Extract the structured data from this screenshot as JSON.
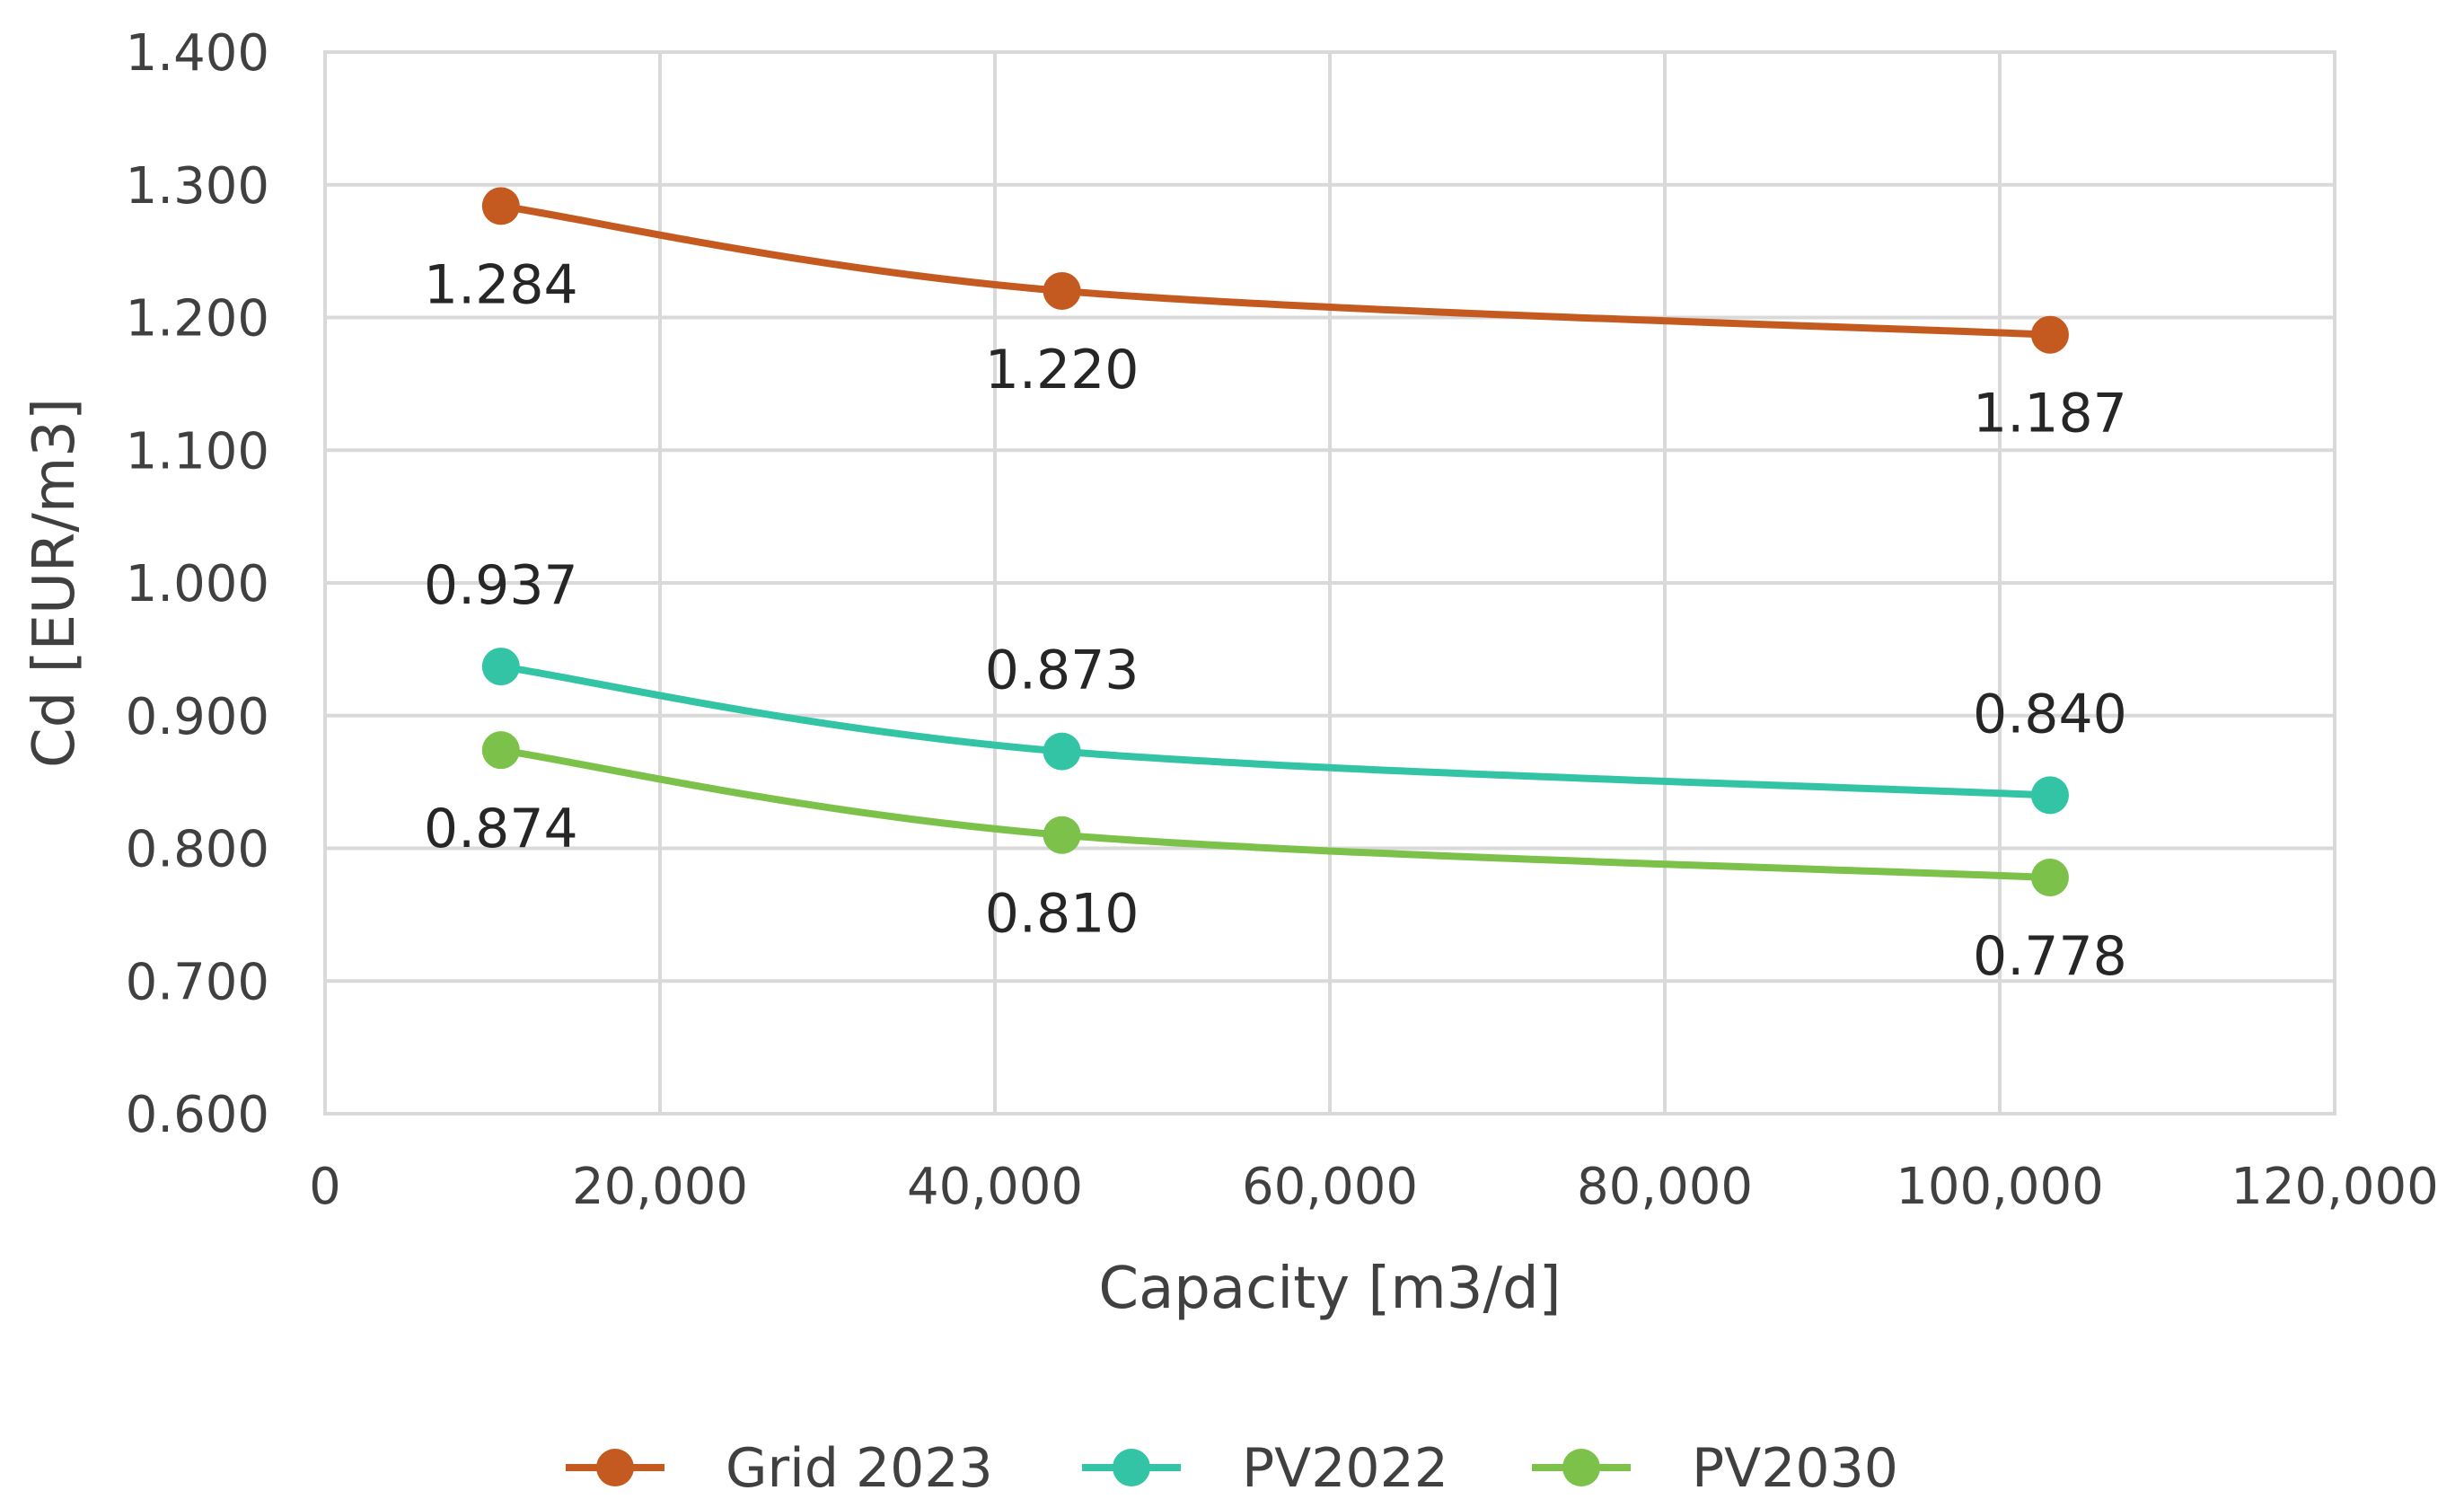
{
  "chart_data": {
    "type": "line",
    "title": "",
    "xlabel": "Capacity [m3/d]",
    "ylabel": "Cd [EUR/m3]",
    "xlim": [
      0,
      120000
    ],
    "ylim": [
      0.6,
      1.4
    ],
    "x_ticks": [
      "0",
      "20,000",
      "40,000",
      "60,000",
      "80,000",
      "100,000",
      "120,000"
    ],
    "y_ticks": [
      "0.600",
      "0.700",
      "0.800",
      "0.900",
      "1.000",
      "1.100",
      "1.200",
      "1.300",
      "1.400"
    ],
    "grid": true,
    "legend_position": "bottom",
    "series": [
      {
        "name": "Grid 2023",
        "color": "#c55a21",
        "x": [
          10500,
          44000,
          103000
        ],
        "values": [
          1.284,
          1.22,
          1.187
        ],
        "labels": [
          "1.284",
          "1.220",
          "1.187"
        ],
        "label_position": "below"
      },
      {
        "name": "PV2022",
        "color": "#33c4a6",
        "x": [
          10500,
          44000,
          103000
        ],
        "values": [
          0.937,
          0.873,
          0.84
        ],
        "labels": [
          "0.937",
          "0.873",
          "0.840"
        ],
        "label_position": "above"
      },
      {
        "name": "PV2030",
        "color": "#7cc24a",
        "x": [
          10500,
          44000,
          103000
        ],
        "values": [
          0.874,
          0.81,
          0.778
        ],
        "labels": [
          "0.874",
          "0.810",
          "0.778"
        ],
        "label_position": "below"
      }
    ]
  }
}
